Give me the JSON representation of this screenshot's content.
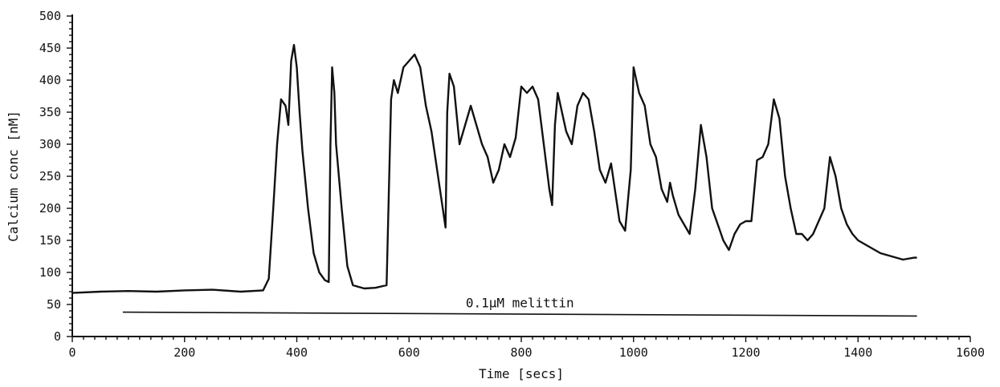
{
  "chart_data": {
    "type": "line",
    "title": "",
    "xlabel": "Time [secs]",
    "ylabel": "Calcium conc [nM]",
    "xlim": [
      0,
      1600
    ],
    "ylim": [
      0,
      500
    ],
    "x_ticks": [
      0,
      200,
      400,
      600,
      800,
      1000,
      1200,
      1400,
      1600
    ],
    "y_ticks": [
      0,
      50,
      100,
      150,
      200,
      250,
      300,
      350,
      400,
      450,
      500
    ],
    "grid": false,
    "legend": "none",
    "annotation": {
      "text": "0.1μM melittin",
      "x_start": 90,
      "x_end": 1505,
      "y_start": 38,
      "y_end": 32
    },
    "series": [
      {
        "x": [
          0,
          50,
          100,
          150,
          200,
          250,
          300,
          340,
          350,
          358,
          365,
          372,
          380,
          385,
          390,
          395,
          400,
          405,
          410,
          420,
          430,
          440,
          450,
          457,
          460,
          463,
          467,
          470,
          480,
          490,
          500,
          520,
          540,
          560,
          568,
          573,
          580,
          590,
          600,
          610,
          620,
          630,
          640,
          650,
          660,
          665,
          668,
          672,
          680,
          690,
          700,
          710,
          720,
          730,
          740,
          750,
          760,
          770,
          780,
          790,
          800,
          810,
          820,
          830,
          840,
          850,
          855,
          860,
          865,
          870,
          880,
          890,
          900,
          910,
          920,
          930,
          940,
          950,
          960,
          965,
          975,
          985,
          995,
          1000,
          1010,
          1020,
          1030,
          1040,
          1050,
          1060,
          1065,
          1070,
          1080,
          1090,
          1100,
          1110,
          1120,
          1130,
          1140,
          1150,
          1160,
          1170,
          1180,
          1190,
          1200,
          1210,
          1220,
          1230,
          1240,
          1250,
          1260,
          1270,
          1280,
          1290,
          1300,
          1310,
          1320,
          1330,
          1340,
          1350,
          1360,
          1370,
          1380,
          1390,
          1400,
          1420,
          1440,
          1460,
          1480,
          1500,
          1505
        ],
        "y": [
          68,
          70,
          71,
          70,
          72,
          73,
          70,
          72,
          90,
          200,
          300,
          370,
          360,
          330,
          430,
          455,
          420,
          350,
          290,
          200,
          130,
          100,
          88,
          85,
          300,
          420,
          380,
          300,
          200,
          110,
          80,
          75,
          76,
          80,
          370,
          400,
          380,
          420,
          430,
          440,
          420,
          360,
          320,
          260,
          200,
          170,
          350,
          410,
          390,
          300,
          330,
          360,
          330,
          300,
          280,
          240,
          260,
          300,
          280,
          310,
          390,
          380,
          390,
          370,
          300,
          230,
          205,
          330,
          380,
          360,
          320,
          300,
          360,
          380,
          370,
          320,
          260,
          240,
          270,
          240,
          180,
          165,
          260,
          420,
          380,
          360,
          300,
          280,
          230,
          210,
          240,
          220,
          190,
          175,
          160,
          230,
          330,
          280,
          200,
          175,
          150,
          135,
          160,
          175,
          180,
          180,
          275,
          280,
          300,
          370,
          340,
          250,
          200,
          160,
          160,
          150,
          160,
          180,
          200,
          280,
          250,
          200,
          175,
          160,
          150,
          140,
          130,
          125,
          120,
          123,
          123
        ]
      }
    ]
  }
}
